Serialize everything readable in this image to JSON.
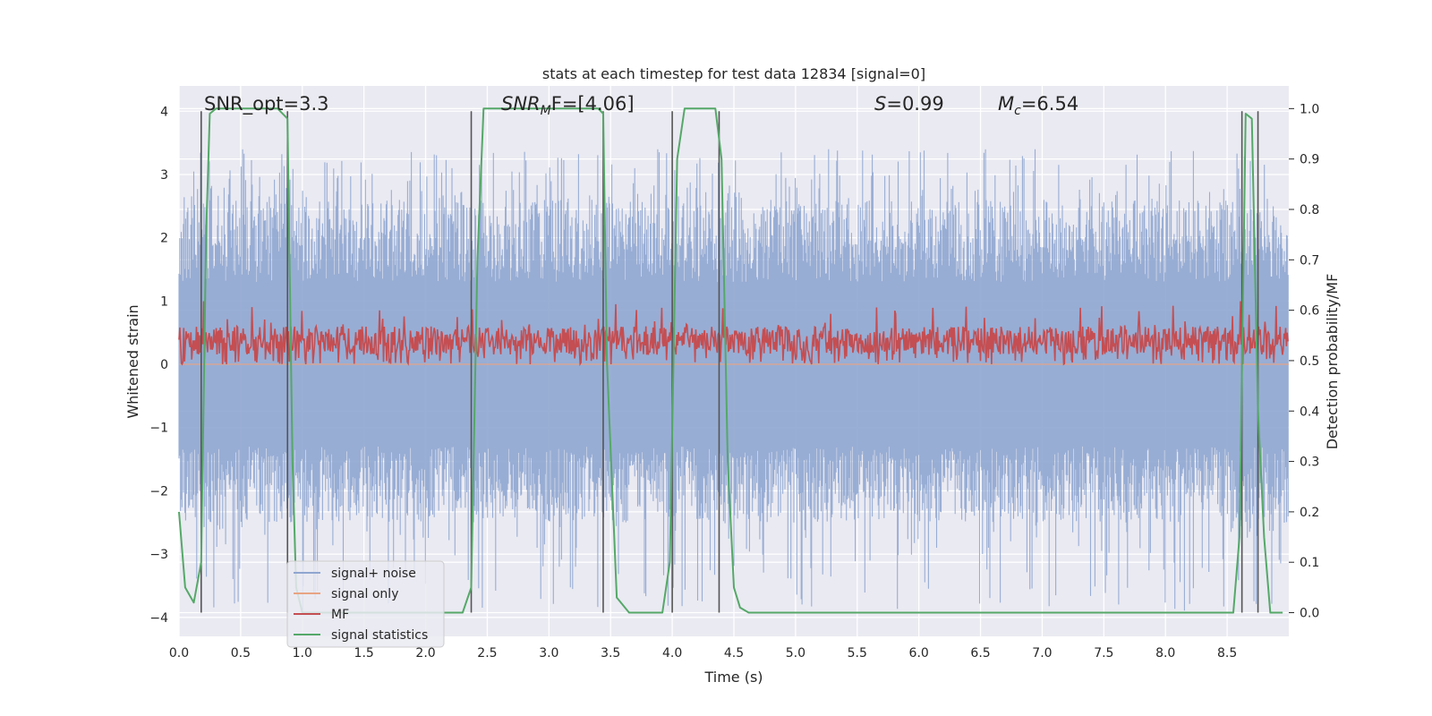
{
  "chart_data": {
    "type": "line",
    "title": "stats at each timestep for test data 12834 [signal=0]",
    "xlabel": "Time (s)",
    "ylabel": "Whitened strain",
    "y2label": "Detection probability/MF",
    "xlim": [
      0.0,
      9.0
    ],
    "ylim": [
      -4.3,
      4.4
    ],
    "y2lim": [
      -0.047,
      1.045
    ],
    "xticks": [
      0.0,
      0.5,
      1.0,
      1.5,
      2.0,
      2.5,
      3.0,
      3.5,
      4.0,
      4.5,
      5.0,
      5.5,
      6.0,
      6.5,
      7.0,
      7.5,
      8.0,
      8.5
    ],
    "xtick_labels": [
      "0.0",
      "0.5",
      "1.0",
      "1.5",
      "2.0",
      "2.5",
      "3.0",
      "3.5",
      "4.0",
      "4.5",
      "5.0",
      "5.5",
      "6.0",
      "6.5",
      "7.0",
      "7.5",
      "8.0",
      "8.5"
    ],
    "yticks": [
      -4,
      -3,
      -2,
      -1,
      0,
      1,
      2,
      3,
      4
    ],
    "ytick_labels": [
      "−4",
      "−3",
      "−2",
      "−1",
      "0",
      "1",
      "2",
      "3",
      "4"
    ],
    "y2ticks": [
      0.0,
      0.1,
      0.2,
      0.3,
      0.4,
      0.5,
      0.6,
      0.7,
      0.8,
      0.9,
      1.0
    ],
    "y2tick_labels": [
      "0.0",
      "0.1",
      "0.2",
      "0.3",
      "0.4",
      "0.5",
      "0.6",
      "0.7",
      "0.8",
      "0.9",
      "1.0"
    ],
    "annotations": {
      "snr_opt": "SNR_opt=3.3",
      "snr_mf_sym": "SNR",
      "snr_mf_sub": "M",
      "snr_mf_rest": "F=[4.06]",
      "s_sym": "S",
      "s_rest": "=0.99",
      "mc_sym": "M",
      "mc_sub": "c",
      "mc_rest": "=6.54"
    },
    "vlines": [
      0.18,
      0.88,
      2.37,
      3.44,
      4.0,
      4.38,
      8.62,
      8.75
    ],
    "series": [
      {
        "name": "signal+ noise",
        "color": "#8fa6d0",
        "axis": "left",
        "style": "noise",
        "y_range": [
          -3.9,
          3.4
        ]
      },
      {
        "name": "signal only",
        "color": "#e8a483",
        "axis": "left",
        "style": "flat",
        "values_note": "zero"
      },
      {
        "name": "MF",
        "color": "#c44e52",
        "axis": "left",
        "style": "noise",
        "y_range": [
          0.0,
          1.0
        ]
      },
      {
        "name": "signal statistics",
        "color": "#55a868",
        "axis": "right",
        "style": "line",
        "x": [
          0.0,
          0.05,
          0.12,
          0.18,
          0.22,
          0.25,
          0.3,
          0.4,
          0.8,
          0.88,
          0.92,
          0.95,
          1.0,
          1.1,
          1.5,
          2.0,
          2.3,
          2.37,
          2.42,
          2.47,
          3.4,
          3.44,
          3.47,
          3.55,
          3.65,
          3.8,
          3.92,
          3.98,
          4.04,
          4.1,
          4.35,
          4.4,
          4.45,
          4.5,
          4.55,
          4.62,
          5.0,
          6.0,
          7.0,
          8.0,
          8.55,
          8.6,
          8.65,
          8.7,
          8.75,
          8.8,
          8.85,
          8.9,
          8.95
        ],
        "values": [
          0.2,
          0.05,
          0.02,
          0.1,
          0.75,
          0.99,
          1.0,
          1.0,
          1.0,
          0.98,
          0.3,
          0.05,
          0.0,
          0.0,
          0.0,
          0.0,
          0.0,
          0.05,
          0.7,
          1.0,
          1.0,
          0.99,
          0.5,
          0.03,
          0.0,
          0.0,
          0.0,
          0.1,
          0.9,
          1.0,
          1.0,
          0.9,
          0.3,
          0.05,
          0.01,
          0.0,
          0.0,
          0.0,
          0.0,
          0.0,
          0.0,
          0.15,
          0.99,
          0.98,
          0.4,
          0.15,
          0.0,
          0.0,
          0.0
        ]
      }
    ],
    "legend": {
      "location": "lower-left",
      "entries": [
        "signal+ noise",
        "signal only",
        "MF",
        "signal statistics"
      ]
    }
  }
}
